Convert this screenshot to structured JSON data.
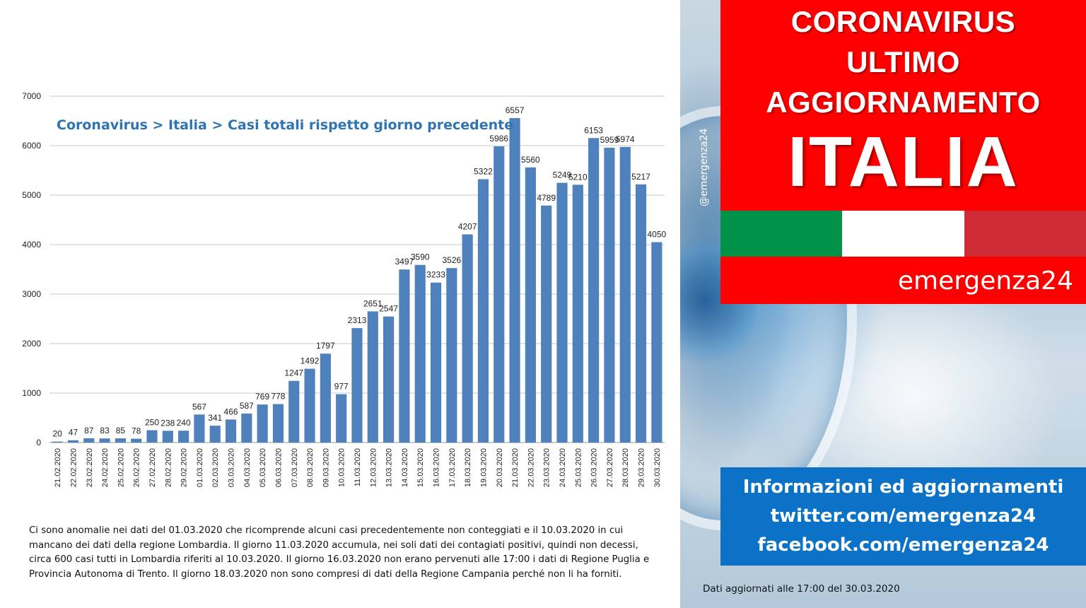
{
  "chart_data": {
    "type": "bar",
    "title": "Coronavirus > Italia > Casi totali rispetto giorno precedente",
    "xlabel": "",
    "ylabel": "",
    "ylim": [
      0,
      7000
    ],
    "yticks": [
      0,
      1000,
      2000,
      3000,
      4000,
      5000,
      6000,
      7000
    ],
    "grid": true,
    "bar_color": "#4f81bd",
    "categories": [
      "21.02.2020",
      "22.02.2020",
      "23.02.2020",
      "24.02.2020",
      "25.02.2020",
      "26.02.2020",
      "27.02.2020",
      "28.02.2020",
      "29.02.2020",
      "01.03.2020",
      "02.03.2020",
      "03.03.2020",
      "04.03.2020",
      "05.03.2020",
      "06.03.2020",
      "07.03.2020",
      "08.03.2020",
      "09.03.2020",
      "10.03.2020",
      "11.03.2020",
      "12.03.2020",
      "13.03.2020",
      "14.03.2020",
      "15.03.2020",
      "16.03.2020",
      "17.03.2020",
      "18.03.2020",
      "19.03.2020",
      "20.03.2020",
      "21.03.2020",
      "22.03.2020",
      "23.03.2020",
      "24.03.2020",
      "25.03.2020",
      "26.03.2020",
      "27.03.2020",
      "28.03.2020",
      "29.03.2020",
      "30.03.2020"
    ],
    "values": [
      20,
      47,
      87,
      83,
      85,
      78,
      250,
      238,
      240,
      567,
      341,
      466,
      587,
      769,
      778,
      1247,
      1492,
      1797,
      977,
      2313,
      2651,
      2547,
      3497,
      3590,
      3233,
      3526,
      4207,
      5322,
      5986,
      6557,
      5560,
      4789,
      5249,
      5210,
      6153,
      5959,
      5974,
      5217,
      4050
    ]
  },
  "note": "Ci sono anomalie nei dati del 01.03.2020 che ricomprende alcuni casi precedentemente  non conteggiati e il 10.03.2020 in cui mancano dei dati della regione Lombardia. Il giorno 11.03.2020  accumula, nei soli dati dei contagiati positivi, quindi non decessi, circa 600 casi tutti in Lombardia riferiti al  10.03.2020. Il giorno 16.03.2020 non erano pervenuti alle 17:00 i dati di Regione Puglia e Provincia Autonoma di Trento. Il giorno 18.03.2020 non sono compresi di dati della Regione  Campania perché non li ha forniti.",
  "watermark": "@emergenza24",
  "banner": {
    "line1": "CORONAVIRUS",
    "line2": "ULTIMO",
    "line3": "AGGIORNAMENTO",
    "country": "ITALIA",
    "color": "#ff0000"
  },
  "flag_colors": [
    "#009246",
    "#ffffff",
    "#ce2b37"
  ],
  "brand": "emergenza24",
  "info": {
    "line1": "Informazioni ed aggiornamenti",
    "line2": "twitter.com/emergenza24",
    "line3": "facebook.com/emergenza24",
    "color": "#0b72c8"
  },
  "updated": "Dati aggiornati alle 17:00 del 30.03.2020"
}
